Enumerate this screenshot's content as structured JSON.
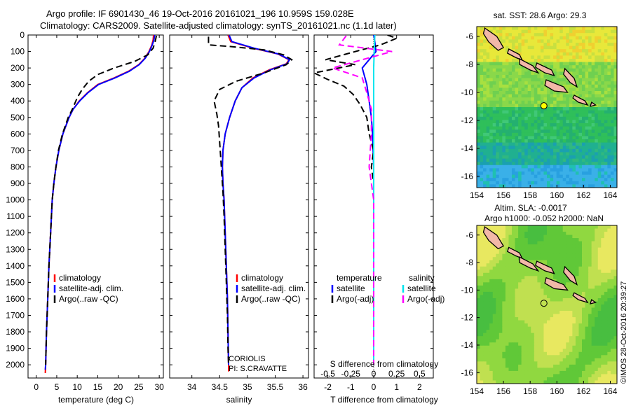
{
  "header": {
    "line1": "Argo profile: IF 6901430_46 19-Oct-2016 20161021_196 10.959S 159.028E",
    "line2": "Climatology: CARS2009. Satellite-adjusted climatology: synTS_20161021.nc (1.1d later)"
  },
  "colors": {
    "climatology": "#ff0000",
    "satellite": "#0000ff",
    "argo": "#000000",
    "sal_satellite": "#00e5ee",
    "sal_argo": "#ff00ff",
    "land": "#f2b8a8"
  },
  "chart_data": [
    {
      "type": "line",
      "id": "temperature",
      "xlabel": "temperature (deg C)",
      "ylabel": "",
      "xlim": [
        -2,
        31
      ],
      "ylim": [
        2080,
        0
      ],
      "xticks": [
        0,
        5,
        10,
        15,
        20,
        25,
        30
      ],
      "yticks": [
        0,
        100,
        200,
        300,
        400,
        500,
        600,
        700,
        800,
        900,
        1000,
        1100,
        1200,
        1300,
        1400,
        1500,
        1600,
        1700,
        1800,
        1900,
        2000
      ],
      "legend": [
        "climatology",
        "satellite-adj. clim.",
        "Argo(..raw -QC)"
      ],
      "legend_location": "lower-left",
      "series": [
        {
          "name": "climatology",
          "color": "#ff0000",
          "style": "solid",
          "points": [
            [
              28.6,
              0
            ],
            [
              28.5,
              30
            ],
            [
              28.2,
              60
            ],
            [
              27.5,
              100
            ],
            [
              26.5,
              140
            ],
            [
              25,
              180
            ],
            [
              22.5,
              220
            ],
            [
              19,
              260
            ],
            [
              15,
              300
            ],
            [
              12.5,
              350
            ],
            [
              10.5,
              400
            ],
            [
              9,
              450
            ],
            [
              8,
              500
            ],
            [
              6.5,
              600
            ],
            [
              5.5,
              700
            ],
            [
              4.8,
              800
            ],
            [
              4.3,
              900
            ],
            [
              3.9,
              1000
            ],
            [
              3.5,
              1200
            ],
            [
              3.1,
              1400
            ],
            [
              2.8,
              1600
            ],
            [
              2.5,
              1800
            ],
            [
              2.3,
              2000
            ],
            [
              2.2,
              2050
            ]
          ]
        },
        {
          "name": "satellite-adj. clim.",
          "color": "#0000ff",
          "style": "solid",
          "points": [
            [
              28.9,
              0
            ],
            [
              28.7,
              30
            ],
            [
              28.3,
              60
            ],
            [
              27.6,
              100
            ],
            [
              26.6,
              140
            ],
            [
              25.1,
              180
            ],
            [
              22.7,
              220
            ],
            [
              19.2,
              260
            ],
            [
              15.2,
              300
            ],
            [
              12.6,
              350
            ],
            [
              10.6,
              400
            ],
            [
              9,
              450
            ],
            [
              8,
              500
            ],
            [
              6.5,
              600
            ],
            [
              5.5,
              700
            ],
            [
              4.8,
              800
            ],
            [
              4.3,
              900
            ],
            [
              3.9,
              1000
            ],
            [
              3.5,
              1200
            ],
            [
              3.1,
              1400
            ],
            [
              2.8,
              1600
            ],
            [
              2.5,
              1800
            ],
            [
              2.3,
              2000
            ],
            [
              2.2,
              2030
            ]
          ]
        },
        {
          "name": "Argo(..raw -QC)",
          "color": "#000000",
          "style": "dashed",
          "points": [
            [
              29.3,
              5
            ],
            [
              29,
              40
            ],
            [
              28.5,
              80
            ],
            [
              27.2,
              120
            ],
            [
              24,
              160
            ],
            [
              19,
              200
            ],
            [
              15,
              240
            ],
            [
              12.8,
              280
            ],
            [
              11.2,
              330
            ],
            [
              10,
              380
            ],
            [
              8.8,
              450
            ],
            [
              7.8,
              500
            ],
            [
              6.4,
              600
            ],
            [
              5.4,
              700
            ],
            [
              4.8,
              800
            ],
            [
              4.3,
              900
            ],
            [
              3.9,
              1000
            ],
            [
              3.5,
              1200
            ],
            [
              3.1,
              1400
            ],
            [
              2.8,
              1600
            ],
            [
              2.5,
              1800
            ],
            [
              2.3,
              2000
            ]
          ]
        }
      ]
    },
    {
      "type": "line",
      "id": "salinity",
      "xlabel": "salinity",
      "xlim": [
        33.6,
        36.1
      ],
      "ylim": [
        2080,
        0
      ],
      "xticks": [
        34,
        34.5,
        35,
        35.5,
        36
      ],
      "legend": [
        "climatology",
        "satellite-adj. clim.",
        "Argo(..raw -QC)"
      ],
      "legend_location": "lower-right",
      "annotation": [
        "CORIOLIS",
        "PI: S.CRAVATTE"
      ],
      "series": [
        {
          "name": "climatology",
          "color": "#ff0000",
          "style": "solid",
          "points": [
            [
              34.65,
              0
            ],
            [
              34.7,
              40
            ],
            [
              35.1,
              80
            ],
            [
              35.55,
              115
            ],
            [
              35.75,
              150
            ],
            [
              35.7,
              175
            ],
            [
              35.4,
              210
            ],
            [
              35.1,
              260
            ],
            [
              34.9,
              320
            ],
            [
              34.78,
              400
            ],
            [
              34.68,
              500
            ],
            [
              34.6,
              600
            ],
            [
              34.56,
              700
            ],
            [
              34.55,
              800
            ],
            [
              34.56,
              900
            ],
            [
              34.58,
              1000
            ],
            [
              34.6,
              1200
            ],
            [
              34.62,
              1400
            ],
            [
              34.64,
              1600
            ],
            [
              34.65,
              1800
            ],
            [
              34.66,
              2000
            ],
            [
              34.66,
              2040
            ]
          ]
        },
        {
          "name": "satellite-adj. clim.",
          "color": "#0000ff",
          "style": "solid",
          "points": [
            [
              34.67,
              0
            ],
            [
              34.72,
              40
            ],
            [
              35.12,
              80
            ],
            [
              35.56,
              115
            ],
            [
              35.76,
              150
            ],
            [
              35.71,
              175
            ],
            [
              35.42,
              210
            ],
            [
              35.12,
              260
            ],
            [
              34.9,
              320
            ],
            [
              34.78,
              400
            ],
            [
              34.68,
              500
            ],
            [
              34.6,
              600
            ],
            [
              34.56,
              700
            ],
            [
              34.55,
              800
            ],
            [
              34.56,
              900
            ],
            [
              34.58,
              1000
            ],
            [
              34.6,
              1200
            ],
            [
              34.62,
              1400
            ],
            [
              34.64,
              1600
            ],
            [
              34.65,
              1800
            ],
            [
              34.66,
              2000
            ]
          ]
        },
        {
          "name": "Argo(..raw -QC)",
          "color": "#000000",
          "style": "dashed",
          "points": [
            [
              34.3,
              10
            ],
            [
              34.3,
              60
            ],
            [
              34.7,
              70
            ],
            [
              35.3,
              90
            ],
            [
              35.65,
              120
            ],
            [
              35.8,
              150
            ],
            [
              35.7,
              180
            ],
            [
              35.3,
              230
            ],
            [
              34.8,
              280
            ],
            [
              34.5,
              330
            ],
            [
              34.4,
              400
            ],
            [
              34.45,
              480
            ],
            [
              34.48,
              550
            ],
            [
              34.5,
              650
            ],
            [
              34.52,
              750
            ],
            [
              34.54,
              850
            ],
            [
              34.56,
              950
            ],
            [
              34.58,
              1100
            ],
            [
              34.6,
              1300
            ],
            [
              34.62,
              1500
            ],
            [
              34.64,
              1700
            ],
            [
              34.65,
              1900
            ],
            [
              34.66,
              2000
            ]
          ]
        }
      ]
    },
    {
      "type": "line",
      "id": "differences",
      "xlabel": "T difference from climatology",
      "xlabel_top": "S difference from climatology",
      "xlim": [
        -2.6,
        2.6
      ],
      "ylim": [
        2080,
        0
      ],
      "xticks_T": [
        -2,
        -1,
        0,
        1,
        2
      ],
      "xticks_S": [
        "-0.5",
        "-0.25",
        "0",
        "0.25",
        "0.5"
      ],
      "xticks_S_values": [
        -0.5,
        -0.25,
        0,
        0.25,
        0.5
      ],
      "legend_headers": [
        "temperature",
        "salinity"
      ],
      "legend": [
        "satellite",
        "Argo(-adj)",
        "satellite",
        "Argo(-adj)"
      ],
      "legend_location": "lower-center",
      "series": [
        {
          "name": "temperature satellite",
          "color": "#0000ff",
          "style": "solid",
          "points": [
            [
              0,
              0
            ],
            [
              0.05,
              40
            ],
            [
              0.1,
              100
            ],
            [
              -0.2,
              150
            ],
            [
              -0.5,
              200
            ],
            [
              -0.3,
              300
            ],
            [
              -0.2,
              400
            ],
            [
              -0.1,
              500
            ],
            [
              -0.05,
              600
            ],
            [
              0,
              800
            ],
            [
              0,
              1200
            ],
            [
              0,
              1600
            ],
            [
              0,
              2000
            ]
          ]
        },
        {
          "name": "temperature Argo(-adj)",
          "color": "#000000",
          "style": "dashed",
          "points": [
            [
              0.6,
              0
            ],
            [
              1.0,
              20
            ],
            [
              0.3,
              60
            ],
            [
              -0.8,
              100
            ],
            [
              -2.1,
              150
            ],
            [
              -0.8,
              180
            ],
            [
              -2.6,
              230
            ],
            [
              -2.0,
              270
            ],
            [
              -1.3,
              310
            ],
            [
              -0.9,
              360
            ],
            [
              -0.6,
              420
            ],
            [
              -0.3,
              500
            ],
            [
              -0.2,
              600
            ],
            [
              0,
              700
            ],
            [
              -0.1,
              800
            ],
            [
              0,
              900
            ],
            [
              0,
              1000
            ],
            [
              0,
              1500
            ],
            [
              0,
              2000
            ]
          ]
        },
        {
          "name": "salinity satellite",
          "color": "#00e5ee",
          "style": "solid",
          "points": [
            [
              0.05,
              0
            ],
            [
              0.02,
              100
            ],
            [
              0,
              200
            ],
            [
              0,
              500
            ],
            [
              0,
              1000
            ],
            [
              0,
              1500
            ],
            [
              0,
              2000
            ]
          ]
        },
        {
          "name": "salinity Argo(-adj)",
          "color": "#ff00ff",
          "style": "dashed",
          "points": [
            [
              -1.2,
              5
            ],
            [
              -1.5,
              60
            ],
            [
              0.8,
              100
            ],
            [
              -0.5,
              150
            ],
            [
              -1.8,
              200
            ],
            [
              -0.5,
              260
            ],
            [
              -0.3,
              350
            ],
            [
              -0.1,
              450
            ],
            [
              -0.1,
              600
            ],
            [
              -0.2,
              800
            ],
            [
              0,
              1000
            ],
            [
              0,
              1500
            ],
            [
              0,
              2000
            ]
          ]
        }
      ]
    },
    {
      "type": "heatmap",
      "id": "sst_map",
      "title": "sat. SST: 28.6 Argo: 29.3",
      "xlim": [
        154,
        164.5
      ],
      "ylim": [
        -16.8,
        -5.3
      ],
      "xticks": [
        154,
        156,
        158,
        160,
        162,
        164
      ],
      "yticks": [
        -6,
        -8,
        -10,
        -12,
        -14,
        -16
      ],
      "marker": {
        "lon": 159.028,
        "lat": -10.959
      }
    },
    {
      "type": "heatmap",
      "id": "sla_map",
      "title": "Altim. SLA: -0.0017",
      "subtitle": "Argo h1000: -0.052 h2000: NaN",
      "xlim": [
        154,
        164.5
      ],
      "ylim": [
        -16.8,
        -5.3
      ],
      "xticks": [
        154,
        156,
        158,
        160,
        162,
        164
      ],
      "yticks": [
        -6,
        -8,
        -10,
        -12,
        -14,
        -16
      ],
      "marker": {
        "lon": 159.028,
        "lat": -10.959
      }
    }
  ],
  "credit": "©IMOS 28-Oct-2016 20:39:27"
}
